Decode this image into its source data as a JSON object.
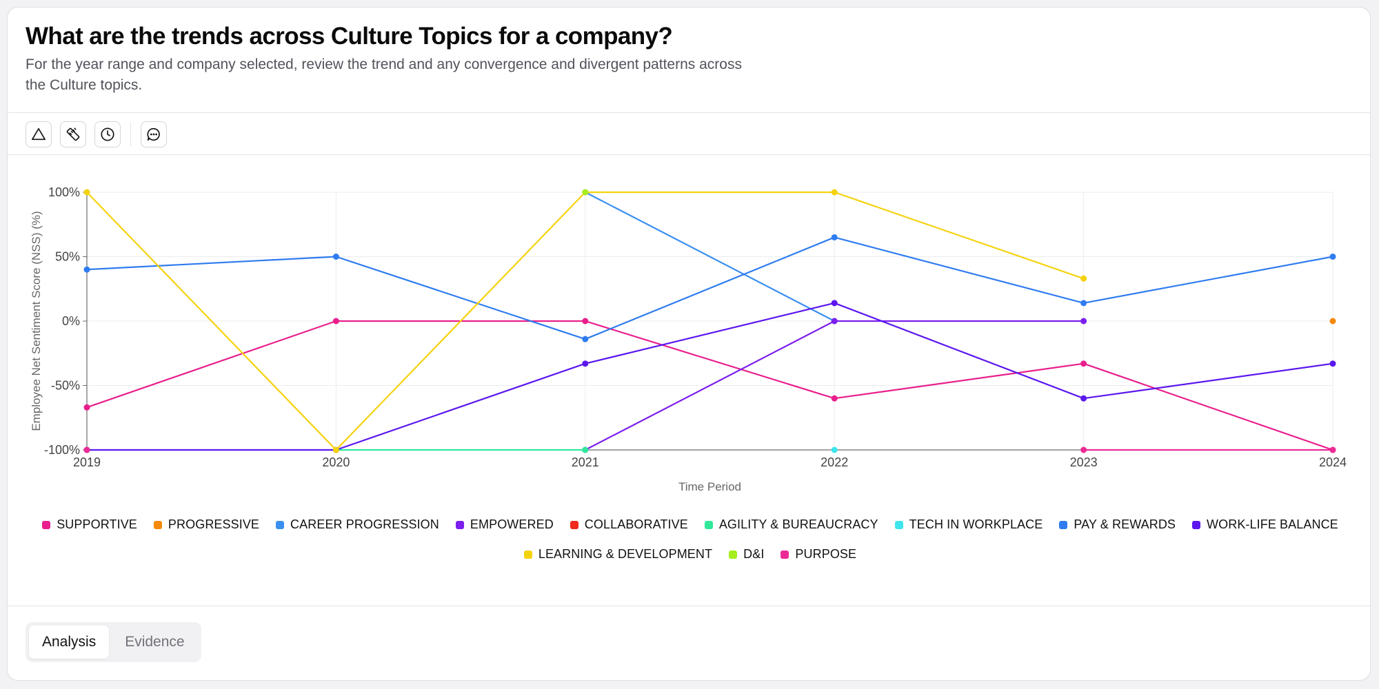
{
  "header": {
    "title": "What are the trends across Culture Topics for a company?",
    "subtitle": "For the year range and company selected, review the trend and any convergence and divergent patterns across the Culture topics."
  },
  "toolbar": {
    "icons": [
      "triangle-icon",
      "ruler-icon",
      "clock-icon",
      "comment-icon"
    ]
  },
  "chart_data": {
    "type": "line",
    "title": "",
    "xlabel": "Time Period",
    "ylabel": "Employee Net Sentiment Score (NSS) (%)",
    "x": [
      "2019",
      "2020",
      "2021",
      "2022",
      "2023",
      "2024"
    ],
    "ylim": [
      -100,
      100
    ],
    "yticks": [
      "100%",
      "50%",
      "0%",
      "-50%",
      "-100%"
    ],
    "ytick_values": [
      100,
      50,
      0,
      -50,
      -100
    ],
    "grid": true,
    "legend_position": "bottom",
    "series": [
      {
        "name": "SUPPORTIVE",
        "color": "#e91e8c",
        "values": [
          -67,
          0,
          0,
          -60,
          -33,
          -100
        ]
      },
      {
        "name": "PROGRESSIVE",
        "color": "#f5890a",
        "values": [
          null,
          null,
          null,
          null,
          null,
          0
        ]
      },
      {
        "name": "CAREER PROGRESSION",
        "color": "#3b8ff0",
        "values": [
          null,
          null,
          100,
          0,
          null,
          null
        ]
      },
      {
        "name": "EMPOWERED",
        "color": "#7c1fee",
        "values": [
          null,
          null,
          -100,
          0,
          0,
          null
        ]
      },
      {
        "name": "COLLABORATIVE",
        "color": "#ef2b1c",
        "values": [
          null,
          null,
          null,
          null,
          null,
          null
        ]
      },
      {
        "name": "AGILITY & BUREAUCRACY",
        "color": "#2fe89a",
        "values": [
          null,
          -100,
          -100,
          null,
          null,
          null
        ]
      },
      {
        "name": "TECH IN WORKPLACE",
        "color": "#3de6ee",
        "values": [
          null,
          null,
          null,
          -100,
          null,
          null
        ]
      },
      {
        "name": "PAY & REWARDS",
        "color": "#2f7cf0",
        "values": [
          40,
          50,
          -14,
          65,
          14,
          50
        ]
      },
      {
        "name": "WORK-LIFE BALANCE",
        "color": "#5b17ee",
        "values": [
          -100,
          -100,
          -33,
          14,
          -60,
          -33
        ]
      },
      {
        "name": "LEARNING & DEVELOPMENT",
        "color": "#f5d20e",
        "values": [
          100,
          -100,
          100,
          100,
          33,
          null
        ]
      },
      {
        "name": "D&I",
        "color": "#a6ee1d",
        "values": [
          null,
          null,
          100,
          null,
          null,
          null
        ]
      },
      {
        "name": "PURPOSE",
        "color": "#ec2a95",
        "values": [
          -100,
          null,
          null,
          null,
          -100,
          -100
        ]
      }
    ]
  },
  "tabs": [
    {
      "label": "Analysis",
      "active": true
    },
    {
      "label": "Evidence",
      "active": false
    }
  ]
}
